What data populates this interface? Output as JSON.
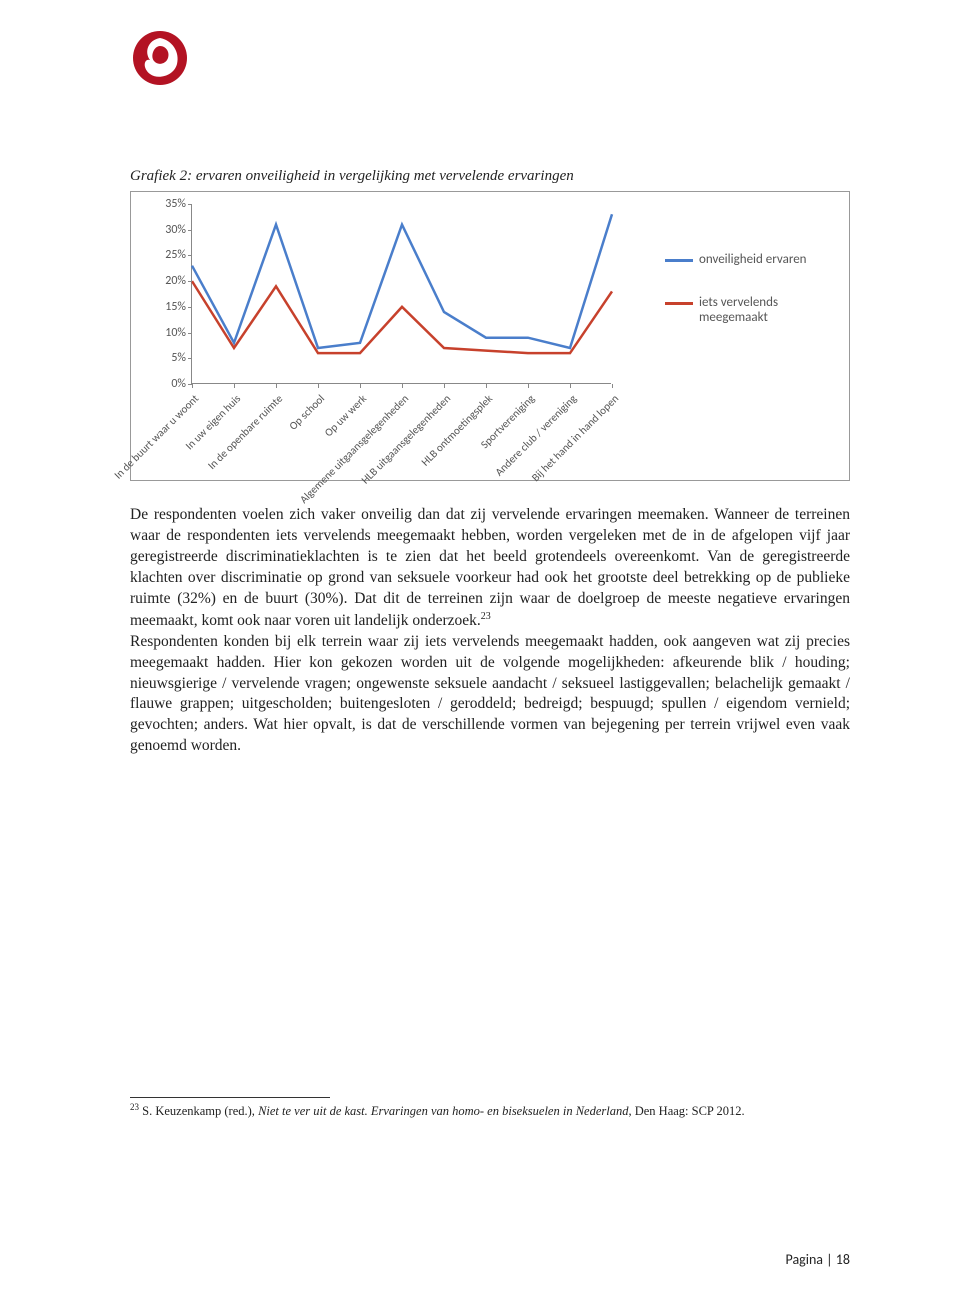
{
  "logo_colors": {
    "circle": "#b31323",
    "swirl": "#ffffff"
  },
  "caption": "Grafiek 2: ervaren onveiligheid in vergelijking met vervelende ervaringen",
  "chart": {
    "type": "line",
    "ylim": [
      0,
      35
    ],
    "ytick_step": 5,
    "yticks": [
      "0%",
      "5%",
      "10%",
      "15%",
      "20%",
      "25%",
      "30%",
      "35%"
    ],
    "categories": [
      "In de buurt waar u woont",
      "In uw eigen huis",
      "In de openbare ruimte",
      "Op school",
      "Op uw werk",
      "Algemene uitgaansgelegenheden",
      "HLB uitgaansgelegenheden",
      "HLB ontmoetingsplek",
      "Sportvereniging",
      "Andere club / vereniging",
      "Bij het hand in hand lopen"
    ],
    "series": [
      {
        "name": "onveiligheid ervaren",
        "color": "#4a7ecb",
        "width": 2.5,
        "values": [
          23,
          8,
          31,
          7,
          8,
          31,
          14,
          9,
          9,
          7,
          33
        ]
      },
      {
        "name": "iets vervelends meegemaakt",
        "color": "#c7412c",
        "width": 2.5,
        "values": [
          20,
          7,
          19,
          6,
          6,
          15,
          7,
          6.5,
          6,
          6,
          18
        ]
      }
    ],
    "axis_color": "#888888",
    "tick_font_size": 12,
    "label_font_size": 11,
    "legend_font_size": 13,
    "background_color": "#ffffff"
  },
  "legend_items": [
    {
      "swatch": "#4a7ecb",
      "label": "onveiligheid ervaren"
    },
    {
      "swatch": "#c7412c",
      "label": "iets vervelends meegemaakt"
    }
  ],
  "body_text_parts": {
    "p1": "De respondenten voelen zich vaker onveilig dan dat zij vervelende ervaringen meemaken. Wanneer de terreinen waar de respondenten iets vervelends meegemaakt hebben, worden vergeleken met de in de afgelopen vijf jaar geregistreerde discriminatieklachten is te zien dat het beeld grotendeels overeenkomt. Van de geregistreerde klachten over discriminatie op grond van seksuele voorkeur had ook het grootste deel betrekking op de publieke ruimte (32%) en de buurt (30%). Dat dit de terreinen zijn waar de doelgroep de meeste negatieve ervaringen meemaakt, komt ook naar voren uit landelijk onderzoek.",
    "sup": "23",
    "p2": "Respondenten konden bij elk terrein waar zij iets vervelends meegemaakt hadden, ook aangeven wat zij precies meegemaakt hadden. Hier kon gekozen worden uit de volgende mogelijkheden: afkeurende blik / houding; nieuwsgierige / vervelende vragen; ongewenste seksuele aandacht / seksueel lastiggevallen; belachelijk gemaakt / flauwe grappen; uitgescholden; buitengesloten / geroddeld; bedreigd; bespuugd; spullen / eigendom vernield; gevochten; anders. Wat hier opvalt, is dat de verschillende vormen van bejegening per terrein vrijwel even vaak genoemd worden."
  },
  "footnote": {
    "num": "23",
    "pre": " S. Keuzenkamp (red.), ",
    "ital": "Niet te ver uit de kast. Ervaringen van homo- en biseksuelen in Nederland",
    "post": ", Den Haag: SCP 2012."
  },
  "page_number": "Pagina | 18"
}
